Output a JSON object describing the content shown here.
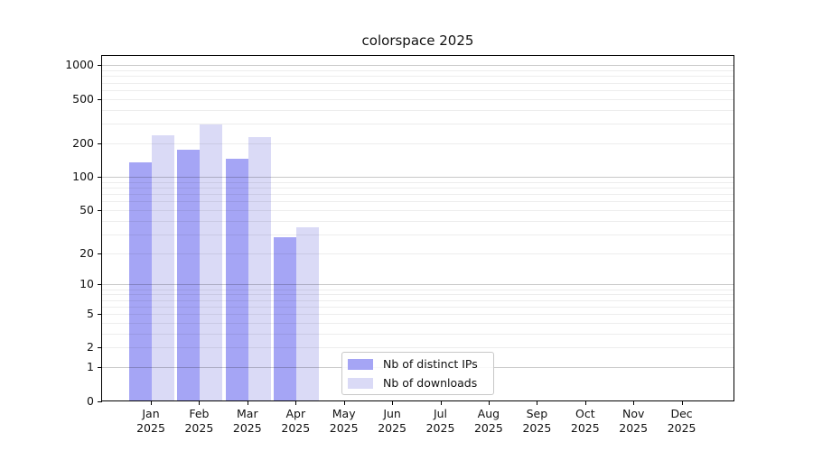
{
  "title": "colorspace 2025",
  "legend": {
    "items": [
      {
        "label": "Nb of distinct IPs",
        "color": "#a5a5f5"
      },
      {
        "label": "Nb of downloads",
        "color": "#dadaf6"
      }
    ],
    "position": "lower-center"
  },
  "y_axis": {
    "scale": "log1p",
    "tick_values": [
      1000,
      500,
      200,
      100,
      50,
      20,
      10,
      5,
      2,
      1,
      0
    ],
    "tick_labels": [
      "1000",
      "500",
      "200",
      "100",
      "50",
      "20",
      "10",
      "5",
      "2",
      "1",
      "0"
    ]
  },
  "x_axis": {
    "months": [
      "Jan",
      "Feb",
      "Mar",
      "Apr",
      "May",
      "Jun",
      "Jul",
      "Aug",
      "Sep",
      "Oct",
      "Nov",
      "Dec"
    ],
    "year": "2025"
  },
  "chart_data": {
    "type": "bar",
    "title": "colorspace 2025",
    "categories": [
      "Jan 2025",
      "Feb 2025",
      "Mar 2025",
      "Apr 2025",
      "May 2025",
      "Jun 2025",
      "Jul 2025",
      "Aug 2025",
      "Sep 2025",
      "Oct 2025",
      "Nov 2025",
      "Dec 2025"
    ],
    "series": [
      {
        "name": "Nb of distinct IPs",
        "color": "#a5a5f5",
        "values": [
          136,
          174,
          146,
          28,
          null,
          null,
          null,
          null,
          null,
          null,
          null,
          null
        ]
      },
      {
        "name": "Nb of downloads",
        "color": "#dadaf6",
        "values": [
          235,
          298,
          227,
          35,
          null,
          null,
          null,
          null,
          null,
          null,
          null,
          null
        ]
      }
    ],
    "yscale": "log1p",
    "yticks": [
      0,
      1,
      2,
      5,
      10,
      20,
      50,
      100,
      200,
      500,
      1000
    ],
    "ylim": [
      0,
      1100
    ],
    "xlabel": "",
    "ylabel": "",
    "grid": "horizontal, log minors light + powers of ten dark",
    "legend_position": "lower-center"
  }
}
